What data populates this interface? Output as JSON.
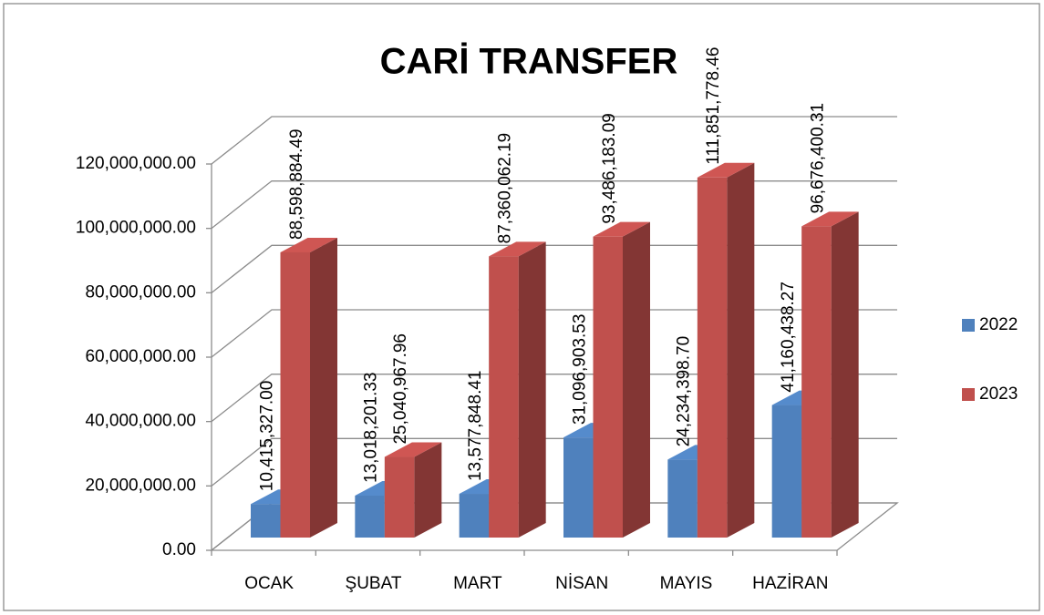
{
  "chart_data": {
    "type": "bar3d",
    "title": "CARİ TRANSFER",
    "categories": [
      "OCAK",
      "ŞUBAT",
      "MART",
      "NİSAN",
      "MAYIS",
      "HAZİRAN"
    ],
    "series": [
      {
        "name": "2022",
        "color": "#4f81bd",
        "values": [
          10415327.0,
          13018201.33,
          13577848.41,
          31096903.53,
          24234398.7,
          41160438.27
        ],
        "value_labels": [
          "10,415,327.00",
          "13,018,201.33",
          "13,577,848.41",
          "31,096,903.53",
          "24,234,398.70",
          "41,160,438.27"
        ]
      },
      {
        "name": "2023",
        "color": "#c0504d",
        "values": [
          88598884.49,
          25040967.96,
          87360062.19,
          93486183.09,
          111851778.46,
          96676400.31
        ],
        "value_labels": [
          "88,598,884.49",
          "25,040,967.96",
          "87,360,062.19",
          "93,486,183.09",
          "111,851,778.46",
          "96,676,400.31"
        ]
      }
    ],
    "ylim": [
      0,
      120000000
    ],
    "yticks": [
      {
        "value": 0,
        "label": "0.00"
      },
      {
        "value": 20000000,
        "label": "20,000,000.00"
      },
      {
        "value": 40000000,
        "label": "40,000,000.00"
      },
      {
        "value": 60000000,
        "label": "60,000,000.00"
      },
      {
        "value": 80000000,
        "label": "80,000,000.00"
      },
      {
        "value": 100000000,
        "label": "100,000,000.00"
      },
      {
        "value": 120000000,
        "label": "120,000,000.00"
      }
    ],
    "grid": true,
    "legend": "right"
  }
}
